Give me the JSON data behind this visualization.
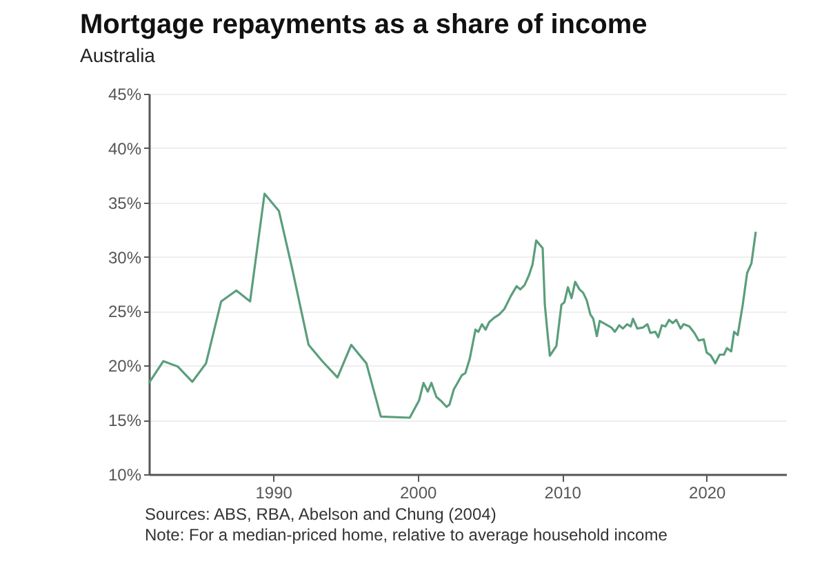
{
  "chart_data": {
    "type": "line",
    "title": "Mortgage repayments as a share of income",
    "subtitle": "Australia",
    "x": [
      1981.4,
      1982.4,
      1983.4,
      1984.4,
      1985.35,
      1986.4,
      1987.45,
      1988.4,
      1989.4,
      1990.4,
      1991.3,
      1992.45,
      1993.4,
      1994.45,
      1995.4,
      1996.45,
      1997.45,
      1999.45,
      2000.1,
      2000.4,
      2000.7,
      2000.95,
      2001.3,
      2001.65,
      2002.0,
      2002.2,
      2002.5,
      2002.8,
      2003.05,
      2003.3,
      2003.6,
      2004.0,
      2004.2,
      2004.45,
      2004.7,
      2004.95,
      2005.3,
      2005.65,
      2006.0,
      2006.45,
      2006.85,
      2007.1,
      2007.4,
      2007.7,
      2007.95,
      2008.2,
      2008.65,
      2008.8,
      2009.0,
      2009.15,
      2009.6,
      2009.95,
      2010.15,
      2010.4,
      2010.65,
      2010.9,
      2011.2,
      2011.45,
      2011.7,
      2011.95,
      2012.15,
      2012.4,
      2012.6,
      2013.0,
      2013.4,
      2013.65,
      2013.95,
      2014.2,
      2014.5,
      2014.75,
      2014.9,
      2015.2,
      2015.6,
      2015.9,
      2016.1,
      2016.45,
      2016.65,
      2016.9,
      2017.15,
      2017.4,
      2017.65,
      2017.9,
      2018.2,
      2018.4,
      2018.8,
      2019.15,
      2019.45,
      2019.8,
      2020.0,
      2020.3,
      2020.6,
      2020.9,
      2021.2,
      2021.4,
      2021.7,
      2021.9,
      2022.15,
      2022.5,
      2022.8,
      2023.1,
      2023.4
    ],
    "series": [
      {
        "color": "#5a9e7c",
        "values": [
          18.4,
          20.4,
          19.9,
          18.5,
          20.2,
          25.9,
          26.9,
          25.9,
          35.8,
          34.2,
          29.0,
          21.9,
          20.4,
          18.9,
          21.9,
          20.2,
          15.3,
          15.2,
          16.8,
          18.4,
          17.6,
          18.4,
          17.1,
          16.7,
          16.2,
          16.4,
          17.8,
          18.5,
          19.1,
          19.3,
          20.6,
          23.3,
          23.1,
          23.8,
          23.3,
          24.0,
          24.4,
          24.7,
          25.2,
          26.4,
          27.3,
          27.0,
          27.4,
          28.3,
          29.3,
          31.5,
          30.8,
          25.6,
          22.8,
          20.9,
          21.8,
          25.6,
          25.8,
          27.2,
          26.2,
          27.7,
          27.0,
          26.7,
          26.0,
          24.7,
          24.3,
          22.7,
          24.1,
          23.8,
          23.5,
          23.1,
          23.7,
          23.4,
          23.8,
          23.6,
          24.3,
          23.4,
          23.5,
          23.8,
          23.0,
          23.1,
          22.6,
          23.7,
          23.6,
          24.2,
          23.9,
          24.2,
          23.4,
          23.8,
          23.6,
          23.0,
          22.3,
          22.4,
          21.2,
          20.9,
          20.2,
          21.0,
          21.0,
          21.6,
          21.3,
          23.1,
          22.8,
          25.6,
          28.5,
          29.4,
          32.3
        ]
      }
    ],
    "xlim": [
      1981.4,
      2025.5
    ],
    "xticks": [
      1990,
      2000,
      2010,
      2020
    ],
    "ylim": [
      10,
      45
    ],
    "yticks": [
      {
        "value": 10,
        "label": "10%"
      },
      {
        "value": 15,
        "label": "15%"
      },
      {
        "value": 20,
        "label": "20%"
      },
      {
        "value": 25,
        "label": "25%"
      },
      {
        "value": 30,
        "label": "30%"
      },
      {
        "value": 35,
        "label": "35%"
      },
      {
        "value": 40,
        "label": "40%"
      },
      {
        "value": 45,
        "label": "45%"
      }
    ],
    "grid": "y",
    "marker": "none",
    "line_style": "solid",
    "annotations": [
      "Sources: ABS, RBA, Abelson and Chung (2004)",
      "Note: For a median-priced home, relative to average household income"
    ]
  }
}
